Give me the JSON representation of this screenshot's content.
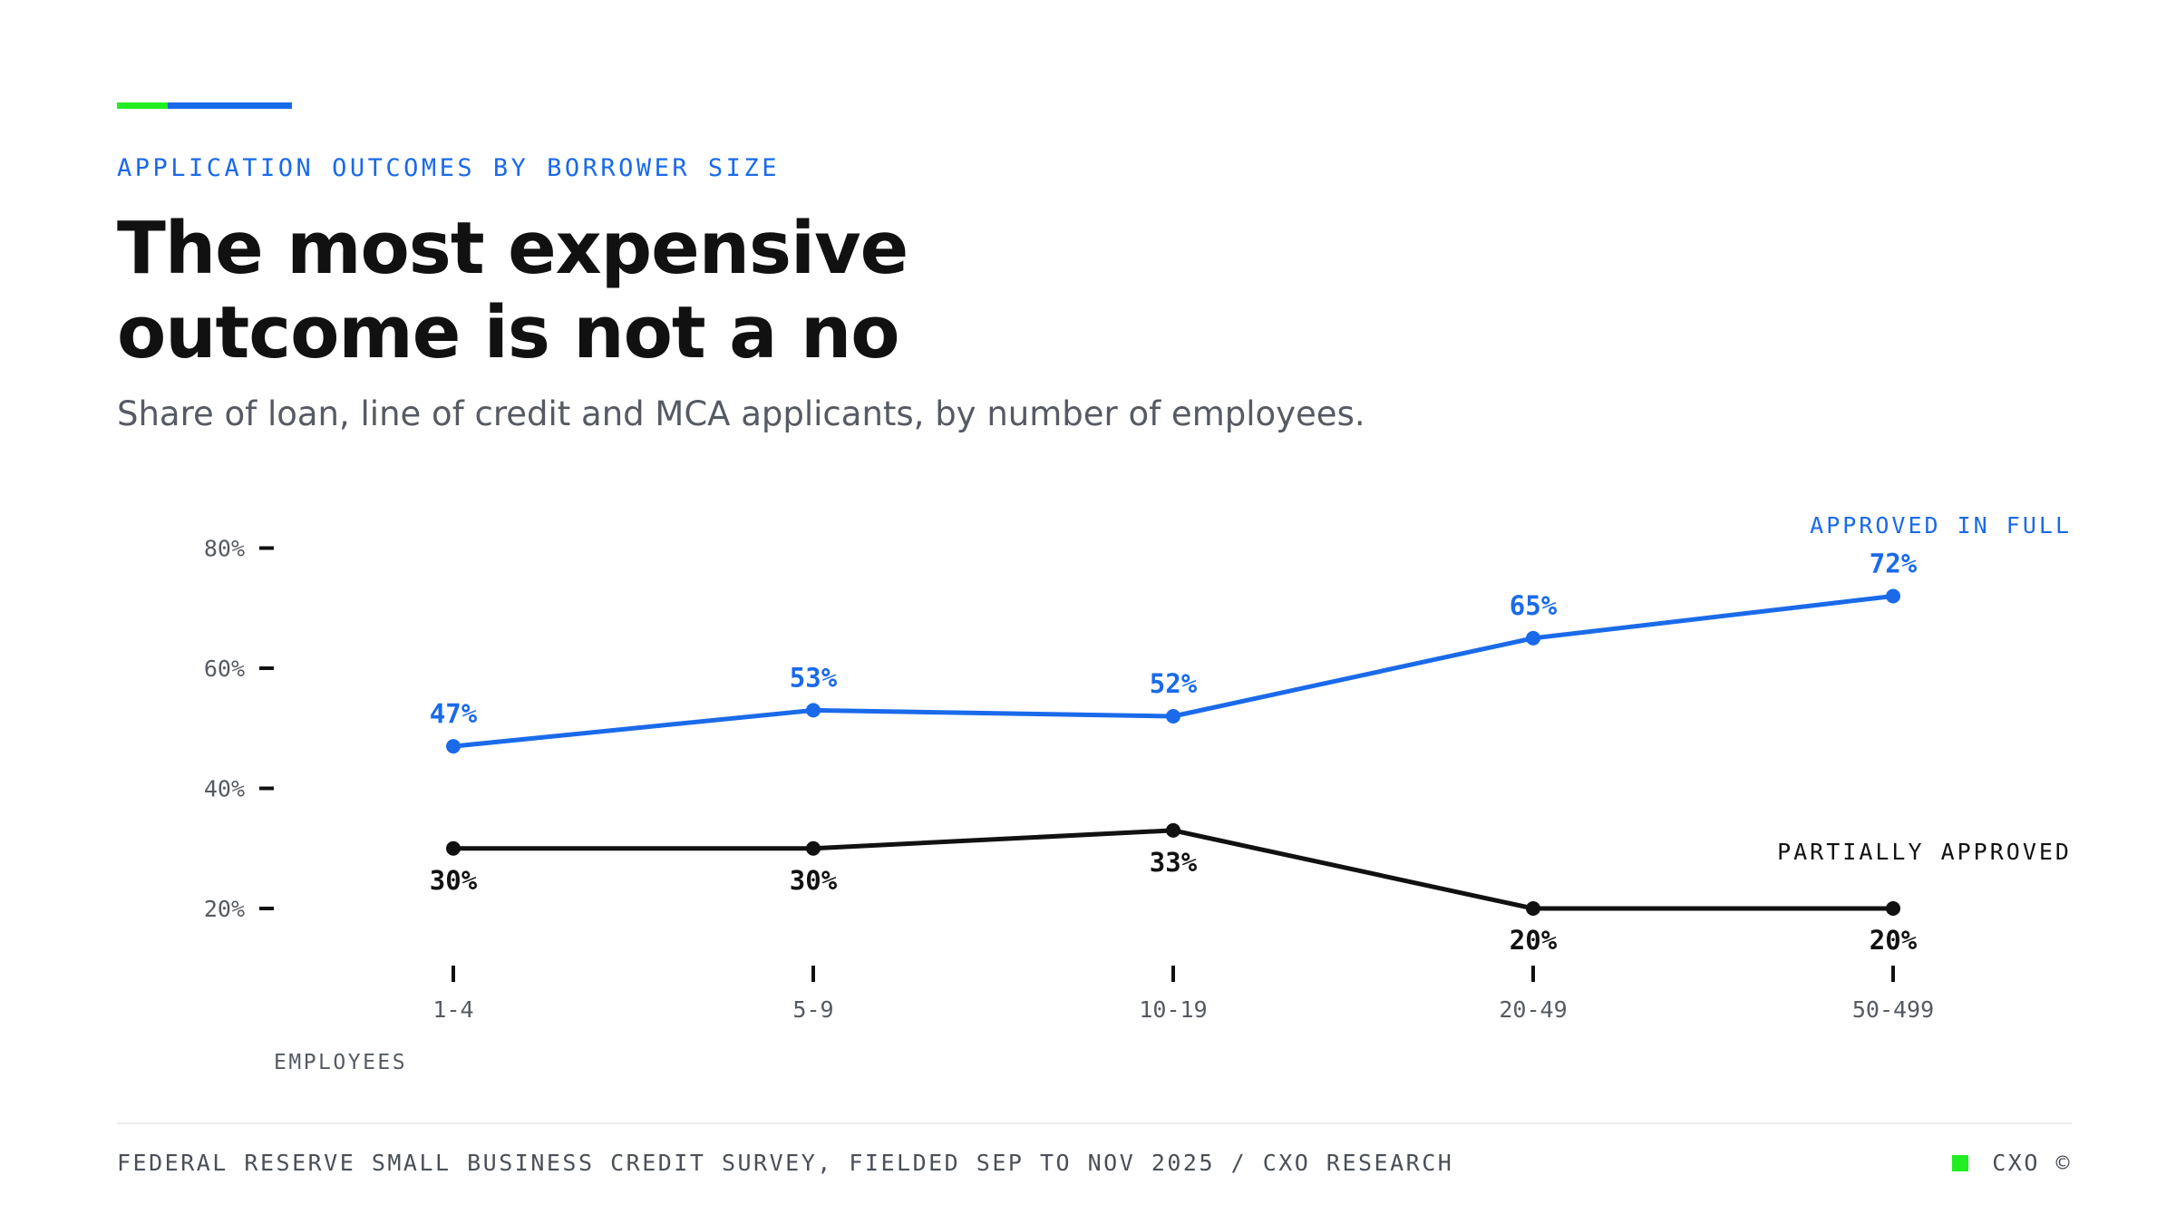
{
  "colors": {
    "accent_green": "#22ee22",
    "accent_blue": "#1a6aea",
    "approved_full": "#1a6aea",
    "partially_approved": "#111111",
    "axis_text": "#555a63"
  },
  "header": {
    "kicker": "APPLICATION OUTCOMES BY BORROWER SIZE",
    "title_line1": "The most expensive",
    "title_line2": "outcome is not a no",
    "subtitle": "Share of loan, line of credit and MCA applicants, by number of employees."
  },
  "chart_data": {
    "type": "line",
    "title": "The most expensive outcome is not a no",
    "subtitle": "Share of loan, line of credit and MCA applicants, by number of employees.",
    "categories": [
      "1-4",
      "5-9",
      "10-19",
      "20-49",
      "50-499"
    ],
    "xlabel": "EMPLOYEES",
    "ylabel": "",
    "ylim": [
      15,
      85
    ],
    "yticks": [
      20,
      40,
      60,
      80
    ],
    "ytick_labels": [
      "20%",
      "40%",
      "60%",
      "80%"
    ],
    "grid": false,
    "series": [
      {
        "name": "APPROVED IN FULL",
        "color": "#1a6aea",
        "values": [
          47,
          53,
          52,
          65,
          72
        ],
        "labels": [
          "47%",
          "53%",
          "52%",
          "65%",
          "72%"
        ],
        "label_position": "above"
      },
      {
        "name": "PARTIALLY APPROVED",
        "color": "#111111",
        "values": [
          30,
          30,
          33,
          20,
          20
        ],
        "labels": [
          "30%",
          "30%",
          "33%",
          "20%",
          "20%"
        ],
        "label_position": "below"
      }
    ],
    "legend": "inline-right"
  },
  "footer": {
    "source": "FEDERAL RESERVE SMALL BUSINESS CREDIT SURVEY, FIELDED SEP TO NOV 2025 / CXO RESEARCH",
    "brand": "CXO ©"
  }
}
